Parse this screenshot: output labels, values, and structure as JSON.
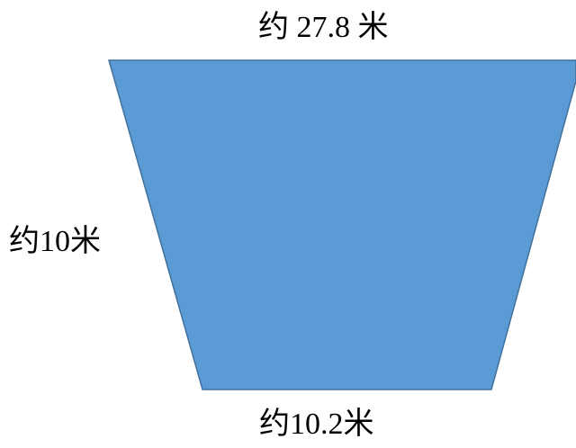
{
  "figure": {
    "shape": "trapezoid",
    "fill_color": "#5B9BD5",
    "stroke_color": "#41719C"
  },
  "labels": {
    "top": "约 27.8 米",
    "left": "约10米",
    "bottom": "约10.2米"
  }
}
